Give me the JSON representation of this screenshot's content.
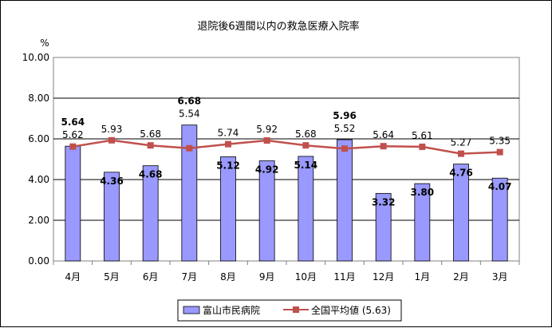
{
  "chart_data": {
    "type": "bar",
    "title": "退院後6週間以内の救急医療入院率",
    "ylabel": "%",
    "ylim": [
      0,
      10
    ],
    "yticks": [
      "0.00",
      "2.00",
      "4.00",
      "6.00",
      "8.00",
      "10.00"
    ],
    "grid": true,
    "legend_position": "bottom",
    "categories": [
      "4月",
      "5月",
      "6月",
      "7月",
      "8月",
      "9月",
      "10月",
      "11月",
      "12月",
      "1月",
      "2月",
      "3月"
    ],
    "series": [
      {
        "name": "富山市民病院",
        "type": "bar",
        "color": "#9999ff",
        "values": [
          5.64,
          4.36,
          4.68,
          6.68,
          5.12,
          4.92,
          5.14,
          5.96,
          3.32,
          3.8,
          4.76,
          4.07
        ],
        "labels": [
          "5.64",
          "4.36",
          "4.68",
          "6.68",
          "5.12",
          "4.92",
          "5.14",
          "5.96",
          "3.32",
          "3.80",
          "4.76",
          "4.07"
        ]
      },
      {
        "name": "全国平均値 (5.63)",
        "type": "line",
        "color": "#c0504d",
        "values": [
          5.62,
          5.93,
          5.68,
          5.54,
          5.74,
          5.92,
          5.68,
          5.52,
          5.64,
          5.61,
          5.27,
          5.35
        ],
        "labels": [
          "5.62",
          "5.93",
          "5.68",
          "5.54",
          "5.74",
          "5.92",
          "5.68",
          "5.52",
          "5.64",
          "5.61",
          "5.27",
          "5.35"
        ]
      }
    ]
  }
}
